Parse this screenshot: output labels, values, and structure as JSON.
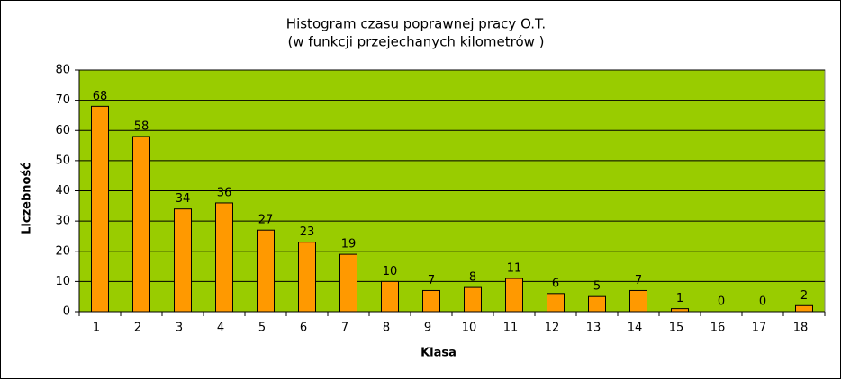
{
  "chart_data": {
    "type": "bar",
    "title": [
      "Histogram czasu poprawnej pracy O.T.",
      " (w funkcji przejechanych kilometrów )"
    ],
    "xlabel": "Klasa",
    "ylabel": "Liczebność",
    "categories": [
      "1",
      "2",
      "3",
      "4",
      "5",
      "6",
      "7",
      "8",
      "9",
      "10",
      "11",
      "12",
      "13",
      "14",
      "15",
      "16",
      "17",
      "18"
    ],
    "values": [
      68,
      58,
      34,
      36,
      27,
      23,
      19,
      10,
      7,
      8,
      11,
      6,
      5,
      7,
      1,
      0,
      0,
      2
    ],
    "color": "#ff9900",
    "plot_background": "#99cc00",
    "ylim": [
      0,
      80
    ],
    "yticks": [
      0,
      10,
      20,
      30,
      40,
      50,
      60,
      70,
      80
    ],
    "grid": true
  }
}
